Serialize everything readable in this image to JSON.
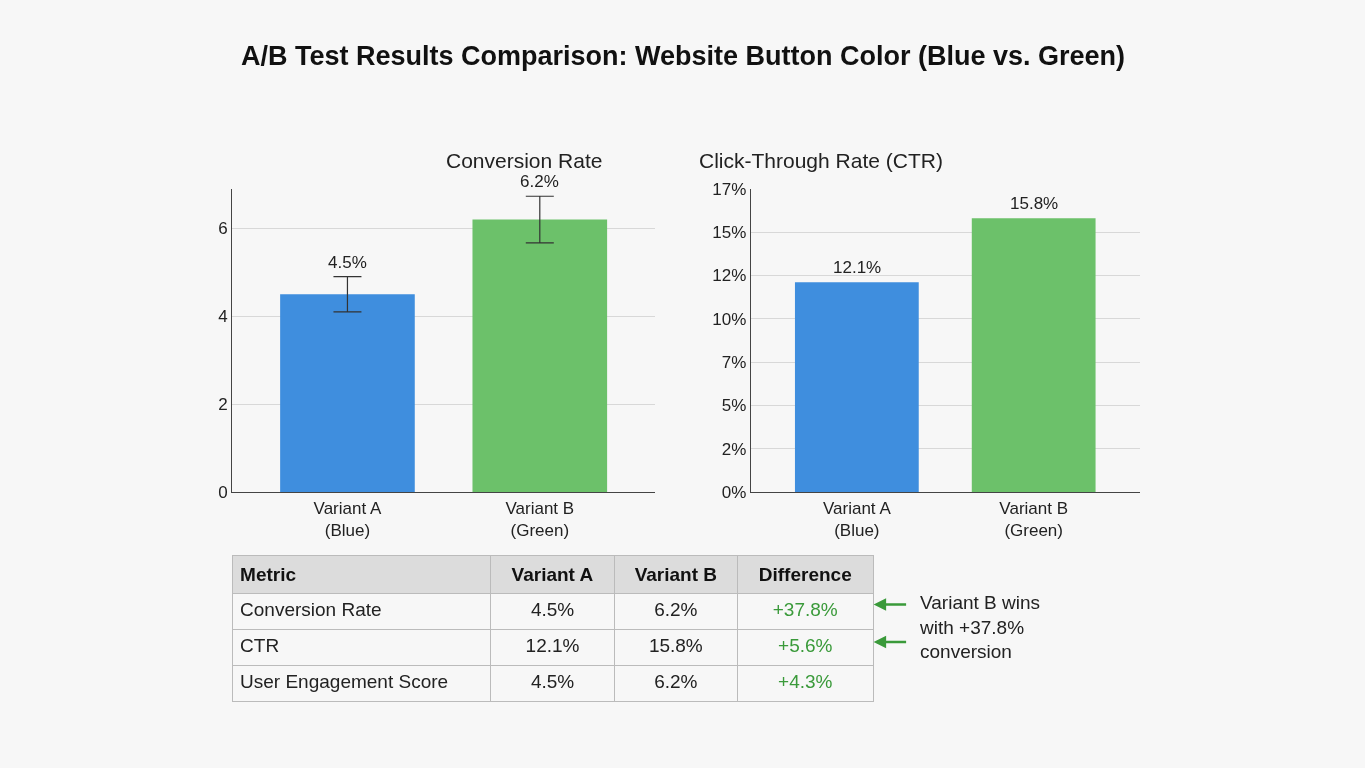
{
  "chart_data": [
    {
      "type": "other",
      "title": "A/B Test Results Comparison: Website Button Color (Blue vs. Green)"
    },
    {
      "type": "bar",
      "title": "Conversion Rate",
      "categories": [
        "Variant A (Blue)",
        "Variant B (Green)"
      ],
      "values": [
        4.5,
        6.2
      ],
      "colors": [
        "#3f8ede",
        "#6cc16a"
      ],
      "errors": [
        0.4,
        0.53
      ],
      "value_labels": [
        "4.5%",
        "6.2%"
      ],
      "ylim": [
        0,
        6.9
      ],
      "yticks": [
        0,
        2,
        4,
        6
      ],
      "grid": "y"
    },
    {
      "type": "bar",
      "title": "Click-Through Rate (CTR)",
      "categories": [
        "Variant A (Blue)",
        "Variant B (Green)"
      ],
      "values": [
        12.1,
        15.8
      ],
      "colors": [
        "#3f8ede",
        "#6cc16a"
      ],
      "value_labels": [
        "12.1%",
        "15.8%"
      ],
      "ylim": [
        0,
        17.5
      ],
      "yticks": [
        {
          "value": 0,
          "label": "0%"
        },
        {
          "value": 2.5,
          "label": "2%"
        },
        {
          "value": 5,
          "label": "5%"
        },
        {
          "value": 7.5,
          "label": "7%"
        },
        {
          "value": 10,
          "label": "10%"
        },
        {
          "value": 12.5,
          "label": "12%"
        },
        {
          "value": 15,
          "label": "15%"
        },
        {
          "value": 17.5,
          "label": "17%"
        }
      ],
      "grid": "y"
    },
    {
      "type": "other",
      "categories": [
        "Metric",
        "Variant A",
        "Variant B",
        "Difference"
      ],
      "y_categories": [
        "Conversion Rate",
        "CTR",
        "User Engagement Score"
      ],
      "cell_labels": [
        [
          "4.5%",
          "6.2%",
          "+37.8%"
        ],
        [
          "12.1%",
          "15.8%",
          "+5.6%"
        ],
        [
          "4.5%",
          "6.2%",
          "+4.3%"
        ]
      ],
      "annotations": [
        "Variant B wins with +37.8% conversion"
      ]
    }
  ]
}
